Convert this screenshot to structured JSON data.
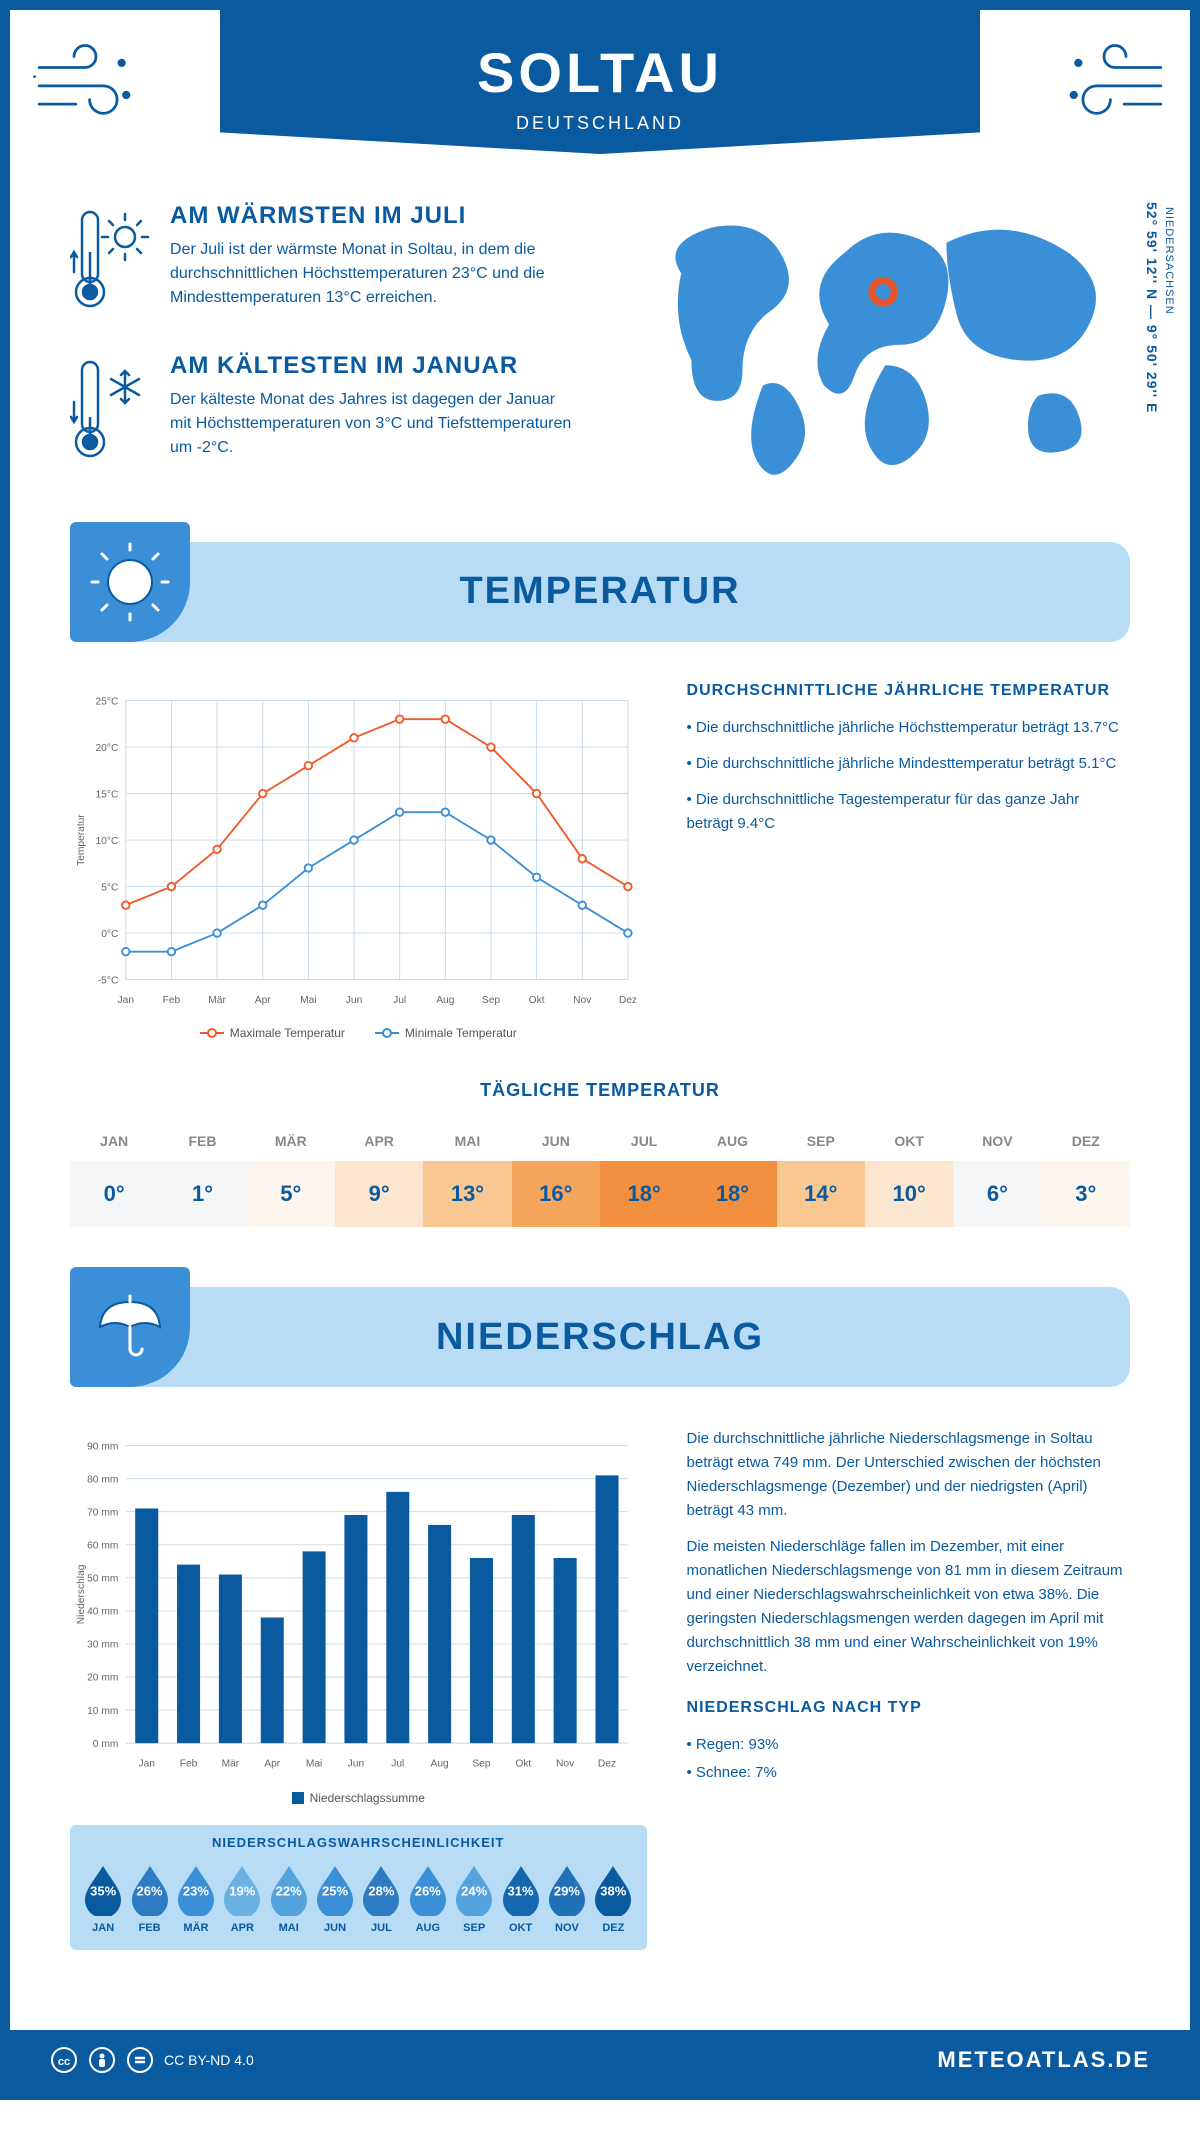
{
  "header": {
    "city": "SOLTAU",
    "country": "DEUTSCHLAND"
  },
  "location": {
    "coords": "52° 59' 12'' N — 9° 50' 29'' E",
    "region": "NIEDERSACHSEN",
    "marker_color": "#e8552c"
  },
  "colors": {
    "primary": "#0a5aa0",
    "light_blue": "#b8dcf5",
    "mid_blue": "#3b8fd6",
    "accent_orange": "#f05a28",
    "line_max": "#f05a28",
    "line_min": "#3b8fd6"
  },
  "facts": {
    "warm": {
      "title": "AM WÄRMSTEN IM JULI",
      "text": "Der Juli ist der wärmste Monat in Soltau, in dem die durchschnittlichen Höchsttemperaturen 23°C und die Mindesttemperaturen 13°C erreichen."
    },
    "cold": {
      "title": "AM KÄLTESTEN IM JANUAR",
      "text": "Der kälteste Monat des Jahres ist dagegen der Januar mit Höchsttemperaturen von 3°C und Tiefsttemperaturen um -2°C."
    }
  },
  "temp_section": {
    "title": "TEMPERATUR",
    "chart": {
      "type": "line",
      "months": [
        "Jan",
        "Feb",
        "Mär",
        "Apr",
        "Mai",
        "Jun",
        "Jul",
        "Aug",
        "Sep",
        "Okt",
        "Nov",
        "Dez"
      ],
      "max": [
        3,
        5,
        9,
        15,
        18,
        21,
        23,
        23,
        20,
        15,
        8,
        5
      ],
      "min": [
        -2,
        -2,
        0,
        3,
        7,
        10,
        13,
        13,
        10,
        6,
        3,
        0
      ],
      "ylabel": "Temperatur",
      "ylim": [
        -5,
        25
      ],
      "ytick_step": 5,
      "ytick_labels": [
        "-5°C",
        "0°C",
        "5°C",
        "10°C",
        "15°C",
        "20°C",
        "25°C"
      ],
      "grid_color": "#c4d8e8",
      "max_color": "#f05a28",
      "min_color": "#3b8fd6",
      "marker_fill": "#ffffff",
      "line_width": 2,
      "marker_radius": 4,
      "legend_max": "Maximale Temperatur",
      "legend_min": "Minimale Temperatur"
    },
    "summary": {
      "title": "DURCHSCHNITTLICHE JÄHRLICHE TEMPERATUR",
      "p1": "• Die durchschnittliche jährliche Höchsttemperatur beträgt 13.7°C",
      "p2": "• Die durchschnittliche jährliche Mindesttemperatur beträgt 5.1°C",
      "p3": "• Die durchschnittliche Tagestemperatur für das ganze Jahr beträgt 9.4°C"
    },
    "daily": {
      "title": "TÄGLICHE TEMPERATUR",
      "months": [
        "JAN",
        "FEB",
        "MÄR",
        "APR",
        "MAI",
        "JUN",
        "JUL",
        "AUG",
        "SEP",
        "OKT",
        "NOV",
        "DEZ"
      ],
      "values": [
        "0°",
        "1°",
        "5°",
        "9°",
        "13°",
        "16°",
        "18°",
        "18°",
        "14°",
        "10°",
        "6°",
        "3°"
      ],
      "cell_colors": [
        "#f4f6f8",
        "#f4f6f8",
        "#fdf6ef",
        "#fce6cf",
        "#f9c892",
        "#f6a65c",
        "#f39040",
        "#f39040",
        "#f9c892",
        "#fce6cf",
        "#f4f6f8",
        "#fdf6ef"
      ]
    }
  },
  "precip_section": {
    "title": "NIEDERSCHLAG",
    "chart": {
      "type": "bar",
      "months": [
        "Jan",
        "Feb",
        "Mär",
        "Apr",
        "Mai",
        "Jun",
        "Jul",
        "Aug",
        "Sep",
        "Okt",
        "Nov",
        "Dez"
      ],
      "values": [
        71,
        54,
        51,
        38,
        58,
        69,
        76,
        66,
        56,
        69,
        56,
        81
      ],
      "ylabel": "Niederschlag",
      "ylim": [
        0,
        90
      ],
      "ytick_step": 10,
      "ytick_labels": [
        "0 mm",
        "10 mm",
        "20 mm",
        "30 mm",
        "40 mm",
        "50 mm",
        "60 mm",
        "70 mm",
        "80 mm",
        "90 mm"
      ],
      "bar_color": "#0a5aa0",
      "grid_color": "#c4d8e8",
      "bar_width": 0.55,
      "legend": "Niederschlagssumme"
    },
    "text": {
      "p1": "Die durchschnittliche jährliche Niederschlagsmenge in Soltau beträgt etwa 749 mm. Der Unterschied zwischen der höchsten Niederschlagsmenge (Dezember) und der niedrigsten (April) beträgt 43 mm.",
      "p2": "Die meisten Niederschläge fallen im Dezember, mit einer monatlichen Niederschlagsmenge von 81 mm in diesem Zeitraum und einer Niederschlagswahrscheinlichkeit von etwa 38%. Die geringsten Niederschlagsmengen werden dagegen im April mit durchschnittlich 38 mm und einer Wahrscheinlichkeit von 19% verzeichnet.",
      "type_title": "NIEDERSCHLAG NACH TYP",
      "type_1": "• Regen: 93%",
      "type_2": "• Schnee: 7%"
    },
    "probability": {
      "title": "NIEDERSCHLAGSWAHRSCHEINLICHKEIT",
      "months": [
        "JAN",
        "FEB",
        "MÄR",
        "APR",
        "MAI",
        "JUN",
        "JUL",
        "AUG",
        "SEP",
        "OKT",
        "NOV",
        "DEZ"
      ],
      "values": [
        "35%",
        "26%",
        "23%",
        "19%",
        "22%",
        "25%",
        "28%",
        "26%",
        "24%",
        "31%",
        "29%",
        "38%"
      ],
      "drop_colors": [
        "#0a5aa0",
        "#2d7bc2",
        "#3b8fd6",
        "#6bb1e3",
        "#55a3dc",
        "#3b8fd6",
        "#2d7bc2",
        "#3b8fd6",
        "#55a3dc",
        "#1568b0",
        "#2171b8",
        "#0a5aa0"
      ]
    }
  },
  "footer": {
    "license": "CC BY-ND 4.0",
    "site": "METEOATLAS.DE"
  }
}
